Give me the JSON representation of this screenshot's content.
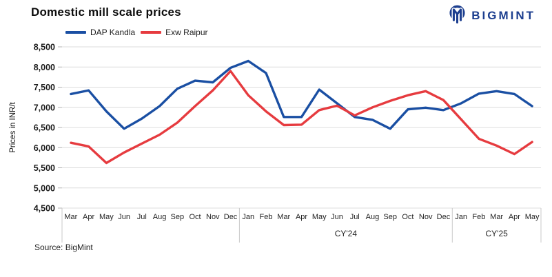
{
  "header": {
    "title": "Domestic mill scale prices",
    "brand": "BIGMINT"
  },
  "source": "Source: BigMint",
  "colors": {
    "dap_kandla": "#1A4FA3",
    "exw_raipur": "#E63B3F",
    "brand_blue": "#1c3e8f",
    "gridline": "#dcdcdc",
    "axis_gray": "#c9c9c9"
  },
  "chart_data": {
    "type": "line",
    "title": "Domestic mill scale prices",
    "xlabel": "",
    "ylabel": "Prices in INR/t",
    "ylim": [
      4500,
      8500
    ],
    "ytick_step": 500,
    "grid": true,
    "legend_position": "top",
    "groups": [
      {
        "label": "",
        "months": [
          "Mar",
          "Apr",
          "May",
          "Jun",
          "Jul",
          "Aug",
          "Sep",
          "Oct",
          "Nov",
          "Dec"
        ]
      },
      {
        "label": "CY'24",
        "months": [
          "Jan",
          "Feb",
          "Mar",
          "Apr",
          "May",
          "Jun",
          "Jul",
          "Aug",
          "Sep",
          "Oct",
          "Nov",
          "Dec"
        ]
      },
      {
        "label": "CY'25",
        "months": [
          "Jan",
          "Feb",
          "Mar",
          "Apr",
          "May"
        ]
      }
    ],
    "series": [
      {
        "name": "DAP Kandla",
        "color": "#1A4FA3",
        "values": [
          7330,
          7420,
          6900,
          6470,
          6720,
          7030,
          7460,
          7660,
          7620,
          7980,
          8150,
          7850,
          6760,
          6760,
          7440,
          7100,
          6760,
          6690,
          6470,
          6950,
          6990,
          6930,
          7100,
          7340,
          7400,
          7330,
          7030
        ]
      },
      {
        "name": "Exw Raipur",
        "color": "#E63B3F",
        "values": [
          6120,
          6030,
          5620,
          5880,
          6100,
          6320,
          6620,
          7030,
          7420,
          7900,
          7300,
          6900,
          6560,
          6570,
          6930,
          7040,
          6800,
          7000,
          7160,
          7300,
          7400,
          7180,
          6700,
          6220,
          6050,
          5840,
          6140
        ]
      }
    ]
  }
}
